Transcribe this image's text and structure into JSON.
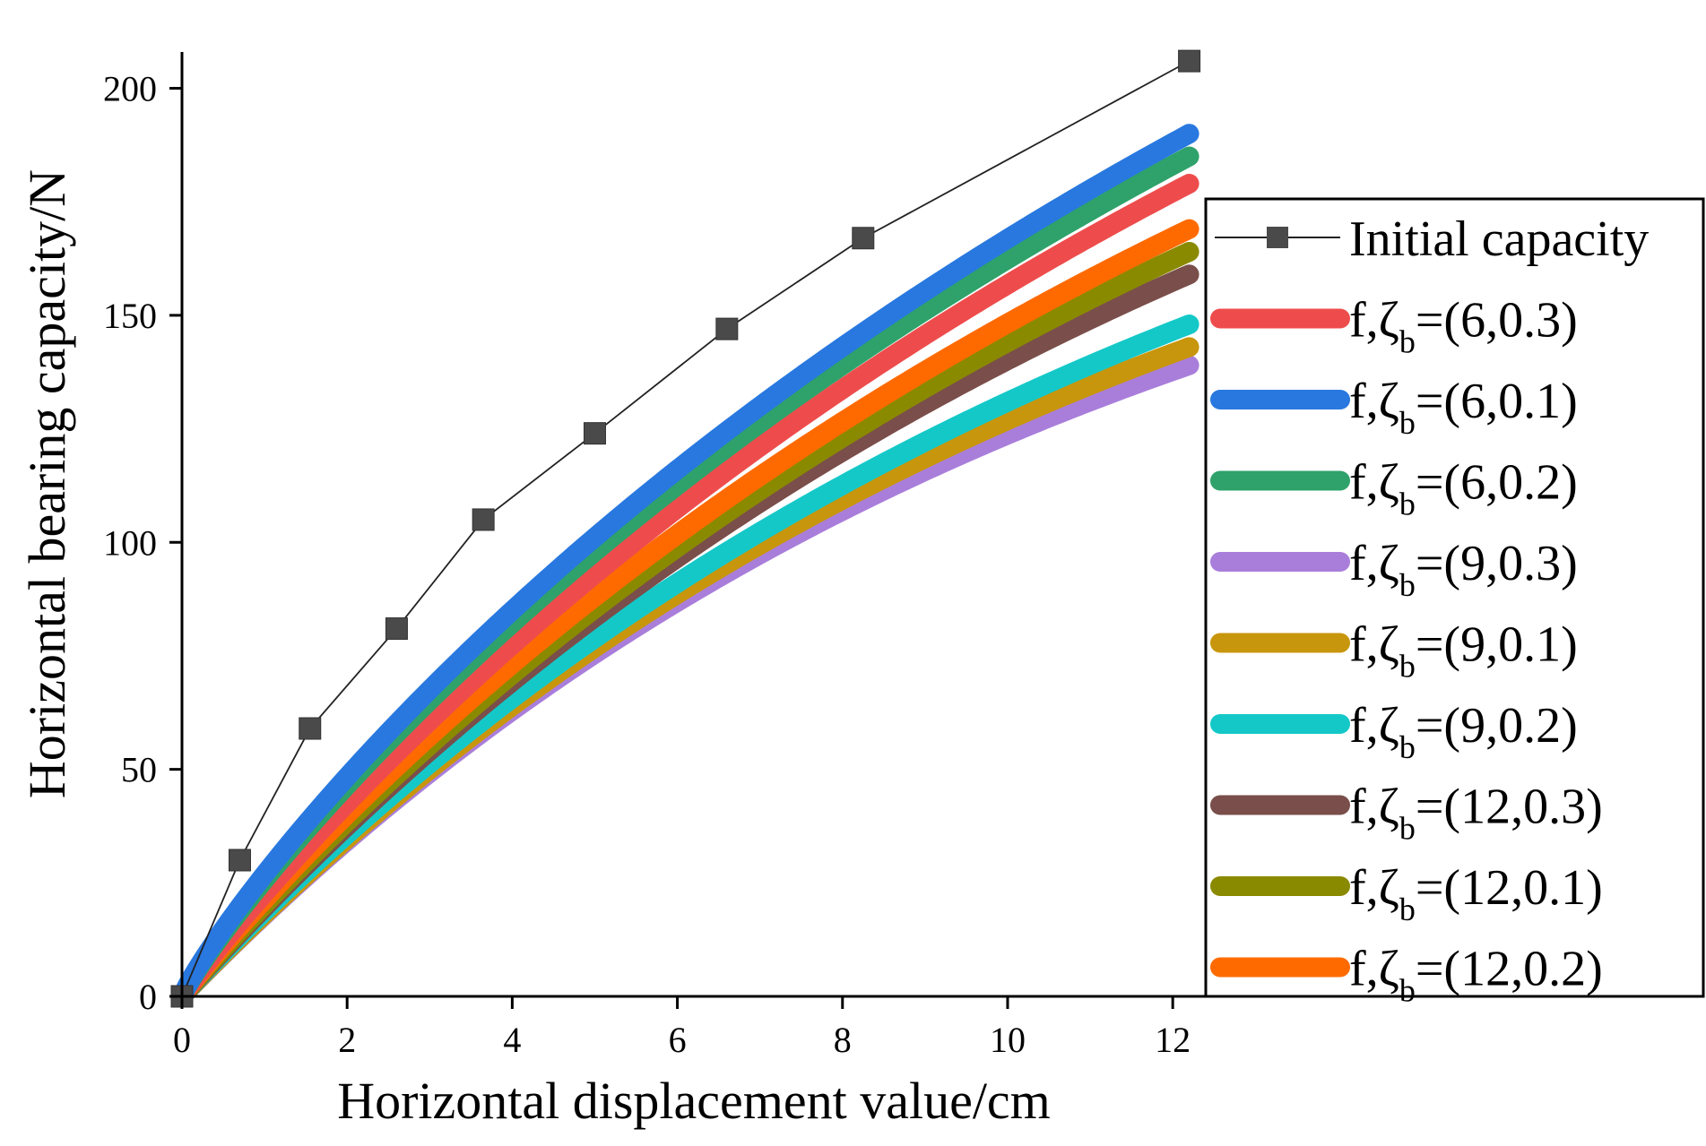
{
  "chart_data": {
    "type": "line",
    "title": "",
    "xlabel": "Horizontal displacement value/cm",
    "ylabel": "Horizontal bearing capacity/N",
    "xlim": [
      0,
      12.4
    ],
    "ylim": [
      0,
      208
    ],
    "xticks": [
      0,
      2,
      4,
      6,
      8,
      10,
      12
    ],
    "yticks": [
      0,
      50,
      100,
      150,
      200
    ],
    "xtick_labels": [
      "0",
      "2",
      "4",
      "6",
      "8",
      "10",
      "12"
    ],
    "ytick_labels": [
      "0",
      "50",
      "100",
      "150",
      "200"
    ],
    "legend_position": "right",
    "series": [
      {
        "name": "Initial capacity",
        "label_main": "Initial capacity",
        "label_tuple": "",
        "color": "#000000",
        "marker": "square",
        "x": [
          0,
          0.7,
          1.55,
          2.6,
          3.65,
          5.0,
          6.6,
          8.25,
          12.2
        ],
        "values": [
          0,
          30,
          59,
          81,
          105,
          124,
          147,
          167,
          206
        ]
      },
      {
        "name": "f,ζb=(6,0.3)",
        "label_main": "f,ζ",
        "label_sub": "b",
        "label_tuple": "=(6,0.3)",
        "color": "#EE4C4C",
        "a": 16.8,
        "p": 0.95,
        "x_end": 12.2,
        "y_end": 179
      },
      {
        "name": "f,ζb=(6,0.1)",
        "label_main": "f,ζ",
        "label_sub": "b",
        "label_tuple": "=(6,0.1)",
        "color": "#2878E0",
        "a": 20.0,
        "p": 0.89,
        "x_end": 12.2,
        "y_end": 190
      },
      {
        "name": "f,ζb=(6,0.2)",
        "label_main": "f,ζ",
        "label_sub": "b",
        "label_tuple": "=(6,0.2)",
        "color": "#2EA26A",
        "a": 19.5,
        "p": 0.9,
        "x_end": 12.2,
        "y_end": 185
      },
      {
        "name": "f,ζb=(9,0.3)",
        "label_main": "f,ζ",
        "label_sub": "b",
        "label_tuple": "=(9,0.3)",
        "color": "#A97EDB",
        "a": 11.2,
        "p": 1.0,
        "x_end": 12.2,
        "y_end": 139
      },
      {
        "name": "f,ζb=(9,0.1)",
        "label_main": "f,ζ",
        "label_sub": "b",
        "label_tuple": "=(9,0.1)",
        "color": "#C8960C",
        "a": 11.7,
        "p": 1.0,
        "x_end": 12.2,
        "y_end": 143
      },
      {
        "name": "f,ζb=(9,0.2)",
        "label_main": "f,ζ",
        "label_sub": "b",
        "label_tuple": "=(9,0.2)",
        "color": "#14C8C8",
        "a": 12.5,
        "p": 0.99,
        "x_end": 12.2,
        "y_end": 148
      },
      {
        "name": "f,ζb=(12,0.3)",
        "label_main": "f,ζ",
        "label_sub": "b",
        "label_tuple": "=(12,0.3)",
        "color": "#7A4E4A",
        "a": 13.4,
        "p": 0.99,
        "x_end": 12.2,
        "y_end": 159
      },
      {
        "name": "f,ζb=(12,0.1)",
        "label_main": "f,ζ",
        "label_sub": "b",
        "label_tuple": "=(12,0.1)",
        "color": "#8A8A00",
        "a": 14.5,
        "p": 0.98,
        "x_end": 12.2,
        "y_end": 164
      },
      {
        "name": "f,ζb=(12,0.2)",
        "label_main": "f,ζ",
        "label_sub": "b",
        "label_tuple": "=(12,0.2)",
        "color": "#FF6A00",
        "a": 15.8,
        "p": 0.96,
        "x_end": 12.2,
        "y_end": 169
      }
    ]
  }
}
